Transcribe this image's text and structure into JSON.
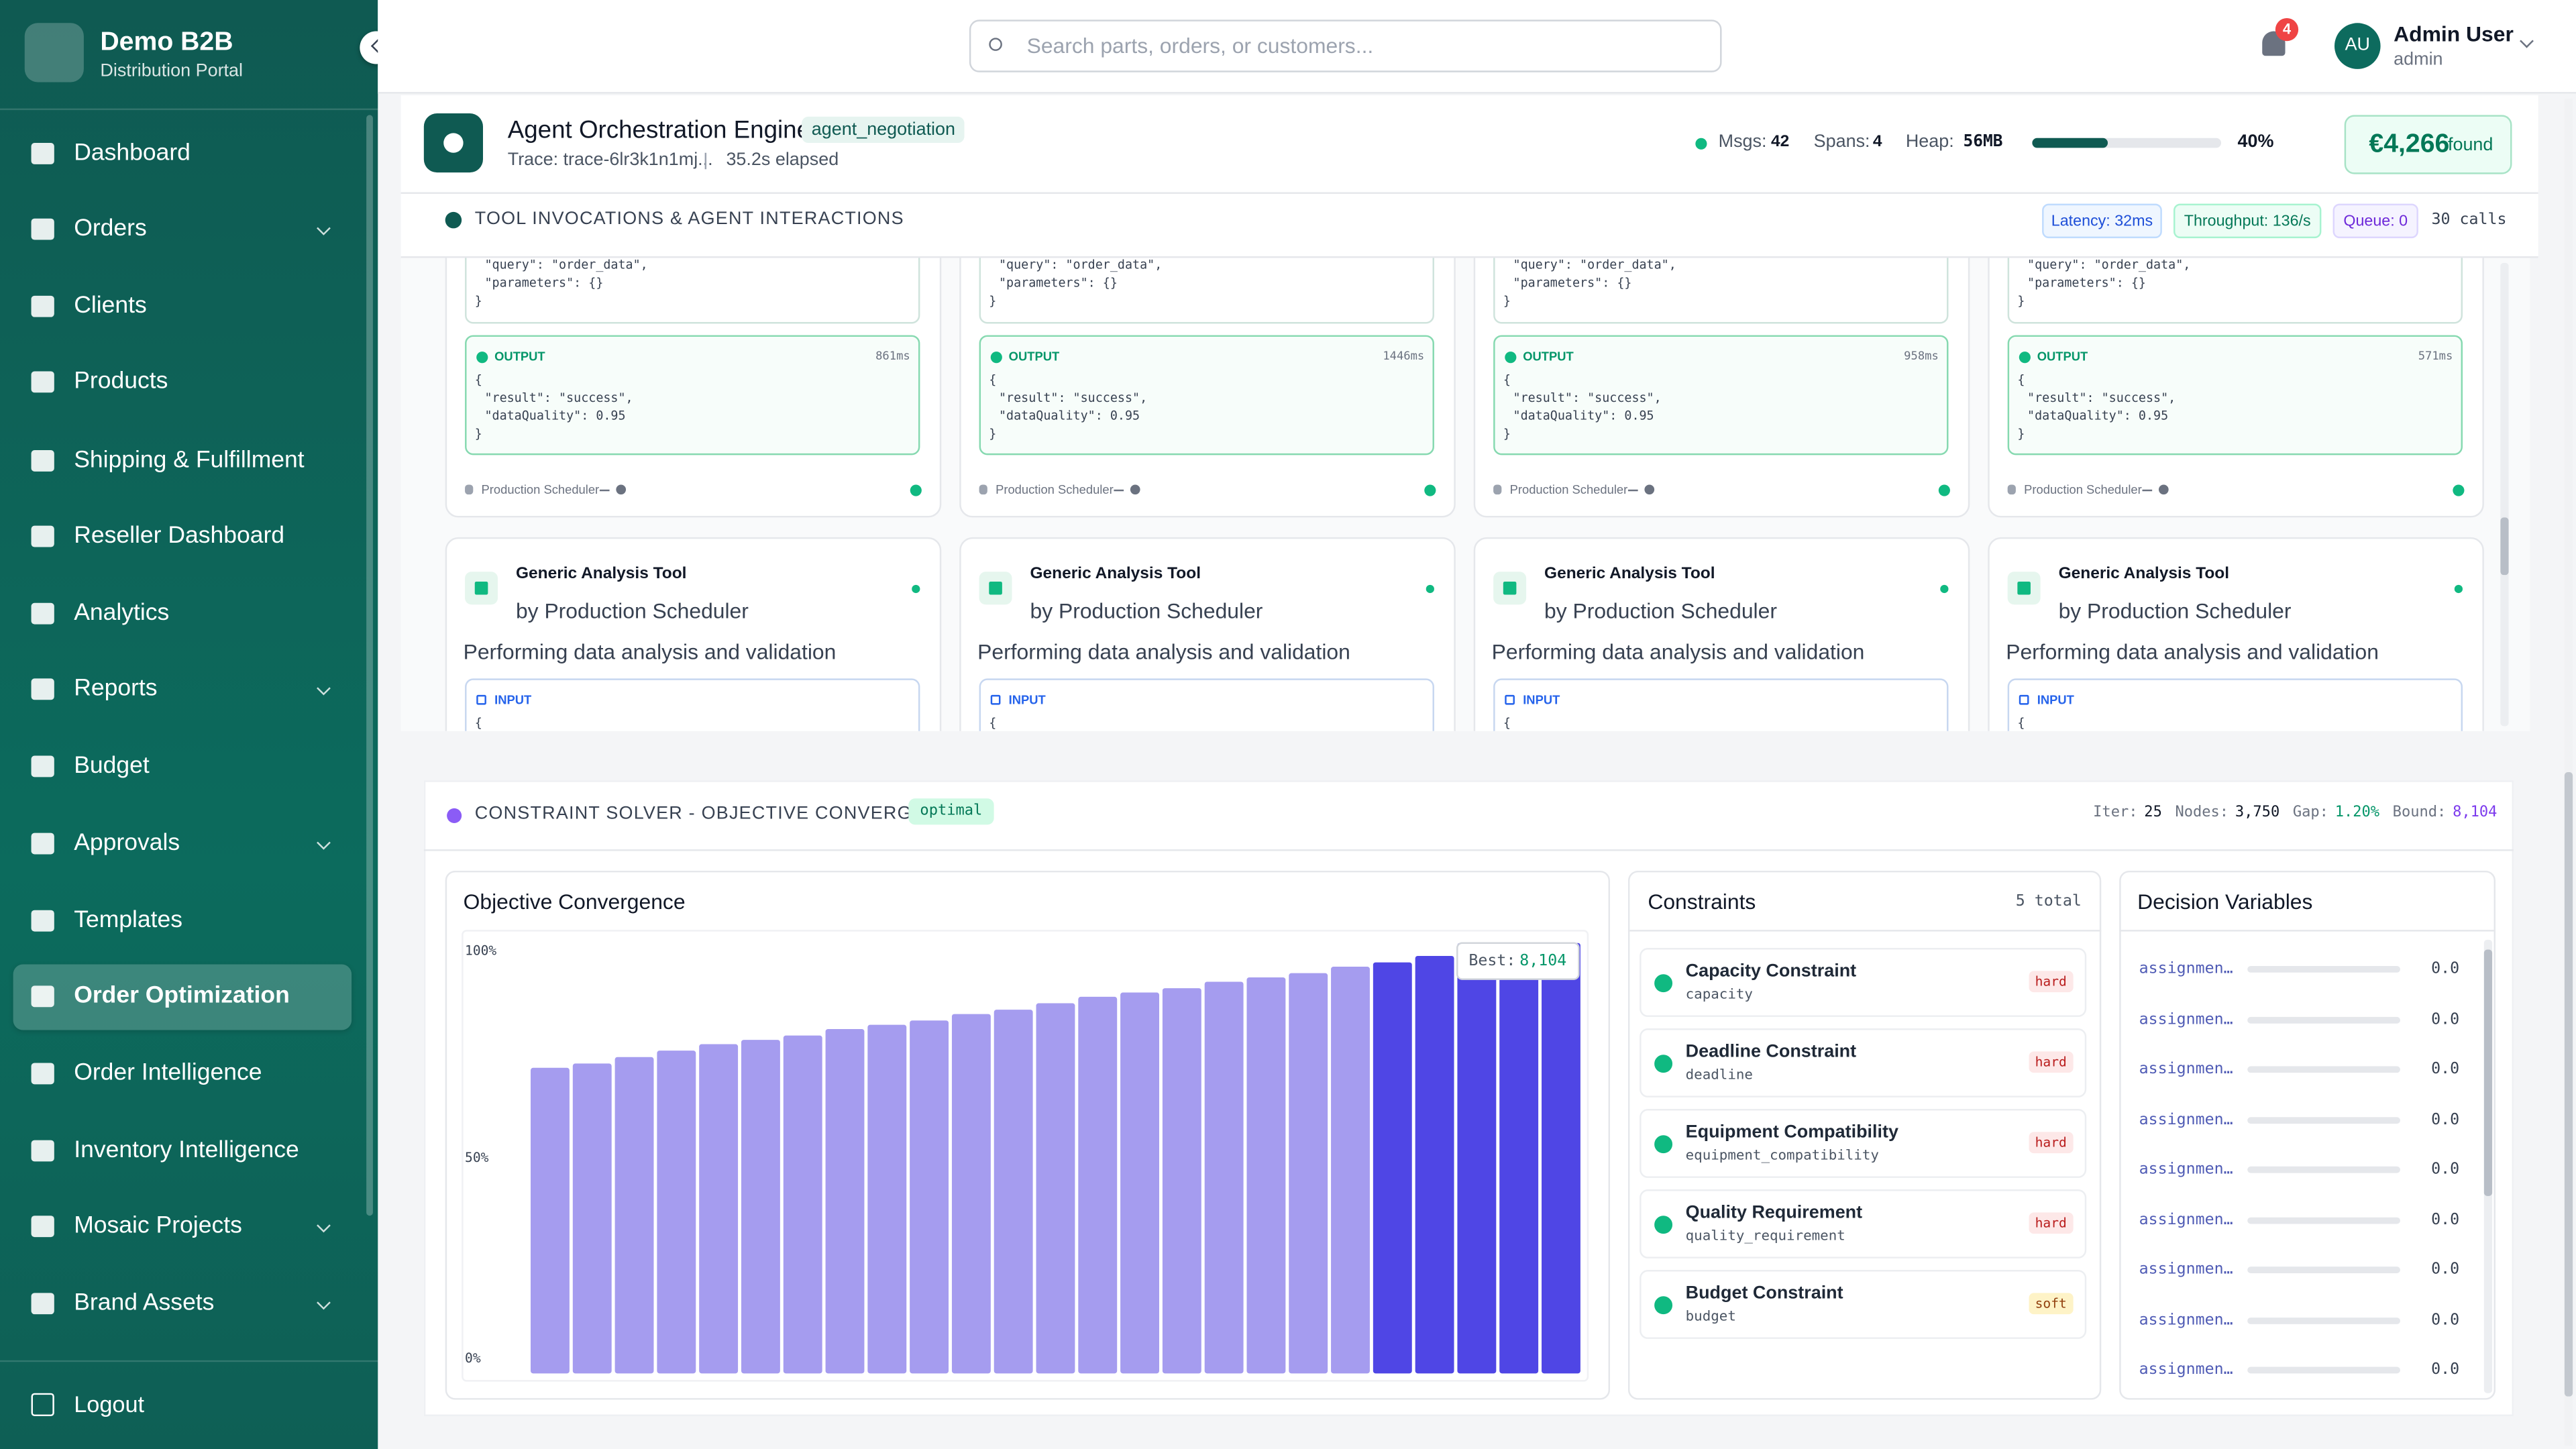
{
  "sidebar": {
    "brand": "Demo B2B",
    "subtitle": "Distribution Portal",
    "nav": [
      {
        "label": "Dashboard"
      },
      {
        "label": "Orders",
        "expandable": true
      },
      {
        "label": "Clients"
      },
      {
        "label": "Products"
      },
      {
        "label": "Shipping & Fulfillment"
      },
      {
        "label": "Reseller Dashboard"
      },
      {
        "label": "Analytics"
      },
      {
        "label": "Reports",
        "expandable": true
      },
      {
        "label": "Budget"
      },
      {
        "label": "Approvals",
        "expandable": true
      },
      {
        "label": "Templates"
      },
      {
        "label": "Order Optimization",
        "active": true
      },
      {
        "label": "Order Intelligence"
      },
      {
        "label": "Inventory Intelligence"
      },
      {
        "label": "Mosaic Projects",
        "expandable": true
      },
      {
        "label": "Brand Assets",
        "expandable": true
      }
    ],
    "logout": "Logout"
  },
  "header": {
    "search_placeholder": "Search parts, orders, or customers...",
    "notifications": 4,
    "user_initials": "AU",
    "user_name": "Admin User",
    "user_role": "admin"
  },
  "agent": {
    "title": "Agent Orchestration Engine",
    "tag": "agent_negotiation",
    "trace": "Trace: trace-6lr3k1n1mj...",
    "elapsed": "35.2s elapsed",
    "stats": [
      {
        "label": "Msgs:",
        "value": "42"
      },
      {
        "label": "Spans:",
        "value": "4"
      },
      {
        "label": "Heap:",
        "value": "56MB"
      }
    ],
    "heap_usage": {
      "value": 40,
      "label": "40%"
    },
    "found": {
      "amount": "€4,266",
      "label": "found"
    }
  },
  "tools": {
    "title": "TOOL INVOCATIONS & AGENT INTERACTIONS",
    "badges": [
      "Latency: 32ms",
      "Throughput: 136/s",
      "Queue: 0"
    ],
    "calls": "30 calls",
    "query_lines": [
      "\"query\": \"order_data\",",
      "\"parameters\": {}",
      "}"
    ],
    "output_label": "OUTPUT",
    "output_lines": [
      "{",
      "\"result\": \"success\",",
      "\"dataQuality\": 0.95",
      "}"
    ],
    "agent_name": "Production Scheduler",
    "tool_name": "Generic Analysis Tool",
    "tool_by": "by Production Scheduler",
    "description": "Performing data analysis and validation",
    "input_label": "INPUT",
    "input_first_line": "{",
    "output_times": [
      "861ms",
      "1446ms",
      "958ms",
      "571ms"
    ]
  },
  "solver": {
    "title": "CONSTRAINT SOLVER - OBJECTIVE CONVERGENCE",
    "status": "optimal",
    "stats": [
      {
        "label": "Iter:",
        "value": "25",
        "color": "#111827"
      },
      {
        "label": "Nodes:",
        "value": "3,750",
        "color": "#111827"
      },
      {
        "label": "Gap:",
        "value": "1.20%",
        "color": "#059669"
      },
      {
        "label": "Bound:",
        "value": "8,104",
        "color": "#7c3aed"
      }
    ],
    "constraints": {
      "title": "Constraints",
      "total": "5 total",
      "items": [
        {
          "name": "Capacity Constraint",
          "code": "capacity",
          "kind": "hard"
        },
        {
          "name": "Deadline Constraint",
          "code": "deadline",
          "kind": "hard"
        },
        {
          "name": "Equipment Compatibility",
          "code": "equipment_compatibility",
          "kind": "hard"
        },
        {
          "name": "Quality Requirement",
          "code": "quality_requirement",
          "kind": "hard"
        },
        {
          "name": "Budget Constraint",
          "code": "budget",
          "kind": "soft"
        }
      ]
    },
    "variables": {
      "title": "Decision Variables",
      "rows": [
        {
          "name": "assignmen…",
          "value": "0.0"
        },
        {
          "name": "assignmen…",
          "value": "0.0"
        },
        {
          "name": "assignmen…",
          "value": "0.0"
        },
        {
          "name": "assignmen…",
          "value": "0.0"
        },
        {
          "name": "assignmen…",
          "value": "0.0"
        },
        {
          "name": "assignmen…",
          "value": "0.0"
        },
        {
          "name": "assignmen…",
          "value": "0.0"
        },
        {
          "name": "assignmen…",
          "value": "0.0"
        },
        {
          "name": "assignmen…",
          "value": "0.0"
        }
      ]
    }
  },
  "chart_data": {
    "type": "bar",
    "title": "Objective Convergence",
    "categories": [
      null,
      null,
      null,
      null,
      null,
      null,
      null,
      null,
      null,
      null,
      null,
      null,
      null,
      null,
      null,
      null,
      null,
      null,
      null,
      null,
      null,
      null,
      null,
      null,
      null
    ],
    "values": [
      71,
      72,
      73.5,
      75,
      76.5,
      77.5,
      78.5,
      80,
      81,
      82,
      83.5,
      84.5,
      86,
      87.5,
      88.5,
      89.5,
      91,
      92,
      93,
      94.5,
      95.5,
      97,
      100,
      100,
      100
    ],
    "colors": [
      "#a59cef",
      "#a59cef",
      "#a59cef",
      "#a59cef",
      "#a59cef",
      "#a59cef",
      "#a59cef",
      "#a59cef",
      "#a59cef",
      "#a59cef",
      "#a59cef",
      "#a59cef",
      "#a59cef",
      "#a59cef",
      "#a59cef",
      "#a59cef",
      "#a59cef",
      "#a59cef",
      "#a59cef",
      "#a59cef",
      "#4f46e5",
      "#4f46e5",
      "#4f46e5",
      "#4f46e5",
      "#4f46e5"
    ],
    "ylim": [
      0,
      100
    ],
    "yticks": [
      {
        "value": 0,
        "label": "0%"
      },
      {
        "value": 50,
        "label": "50%"
      },
      {
        "value": 100,
        "label": "100%"
      }
    ],
    "grid": false,
    "annotation": {
      "label": "Best:",
      "value": "8,104"
    }
  }
}
